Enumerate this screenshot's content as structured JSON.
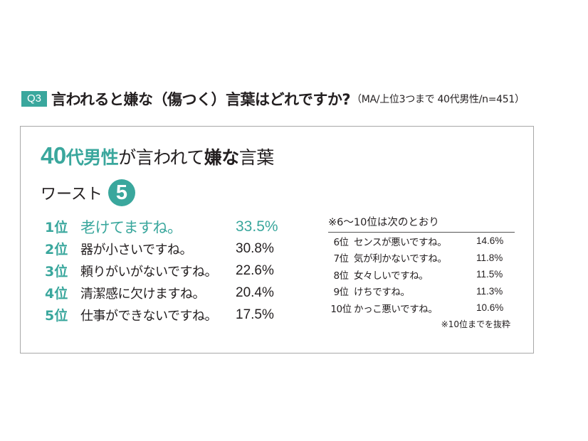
{
  "question": {
    "badge": "Q3",
    "text": "言われると嫌な（傷つく）言葉はどれですか?",
    "note": "（MA/上位3つまで 40代男性/n=451）"
  },
  "panel": {
    "title_parts": [
      "40",
      "代",
      "男性",
      "が言われて",
      "嫌な",
      "言葉"
    ],
    "subtitle": "ワースト",
    "subtitle_number": "5"
  },
  "chart_data": {
    "type": "table",
    "title": "40代男性が言われて嫌な言葉",
    "subtitle": "ワースト5",
    "unit": "%",
    "rows": [
      {
        "rank": "1位",
        "label": "老けてますね。",
        "value": 33.5,
        "value_text": "33.5%"
      },
      {
        "rank": "2位",
        "label": "器が小さいですね。",
        "value": 30.8,
        "value_text": "30.8%"
      },
      {
        "rank": "3位",
        "label": "頼りがいがないですね。",
        "value": 22.6,
        "value_text": "22.6%"
      },
      {
        "rank": "4位",
        "label": "清潔感に欠けますね。",
        "value": 20.4,
        "value_text": "20.4%"
      },
      {
        "rank": "5位",
        "label": "仕事ができないですね。",
        "value": 17.5,
        "value_text": "17.5%"
      }
    ],
    "extra_title": "※6〜10位は次のとおり",
    "extra_rows": [
      {
        "rank": "6位",
        "label": "センスが悪いですね。",
        "value": 14.6,
        "value_text": "14.6%"
      },
      {
        "rank": "7位",
        "label": "気が利かないですね。",
        "value": 11.8,
        "value_text": "11.8%"
      },
      {
        "rank": "8位",
        "label": "女々しいですね。",
        "value": 11.5,
        "value_text": "11.5%"
      },
      {
        "rank": "9位",
        "label": "けちですね。",
        "value": 11.3,
        "value_text": "11.3%"
      },
      {
        "rank": "10位",
        "label": "かっこ悪いですね。",
        "value": 10.6,
        "value_text": "10.6%"
      }
    ],
    "footnote": "※10位までを抜粋"
  },
  "colors": {
    "accent": "#3aa79d",
    "text": "#231f20",
    "border": "#a8a8a8"
  }
}
